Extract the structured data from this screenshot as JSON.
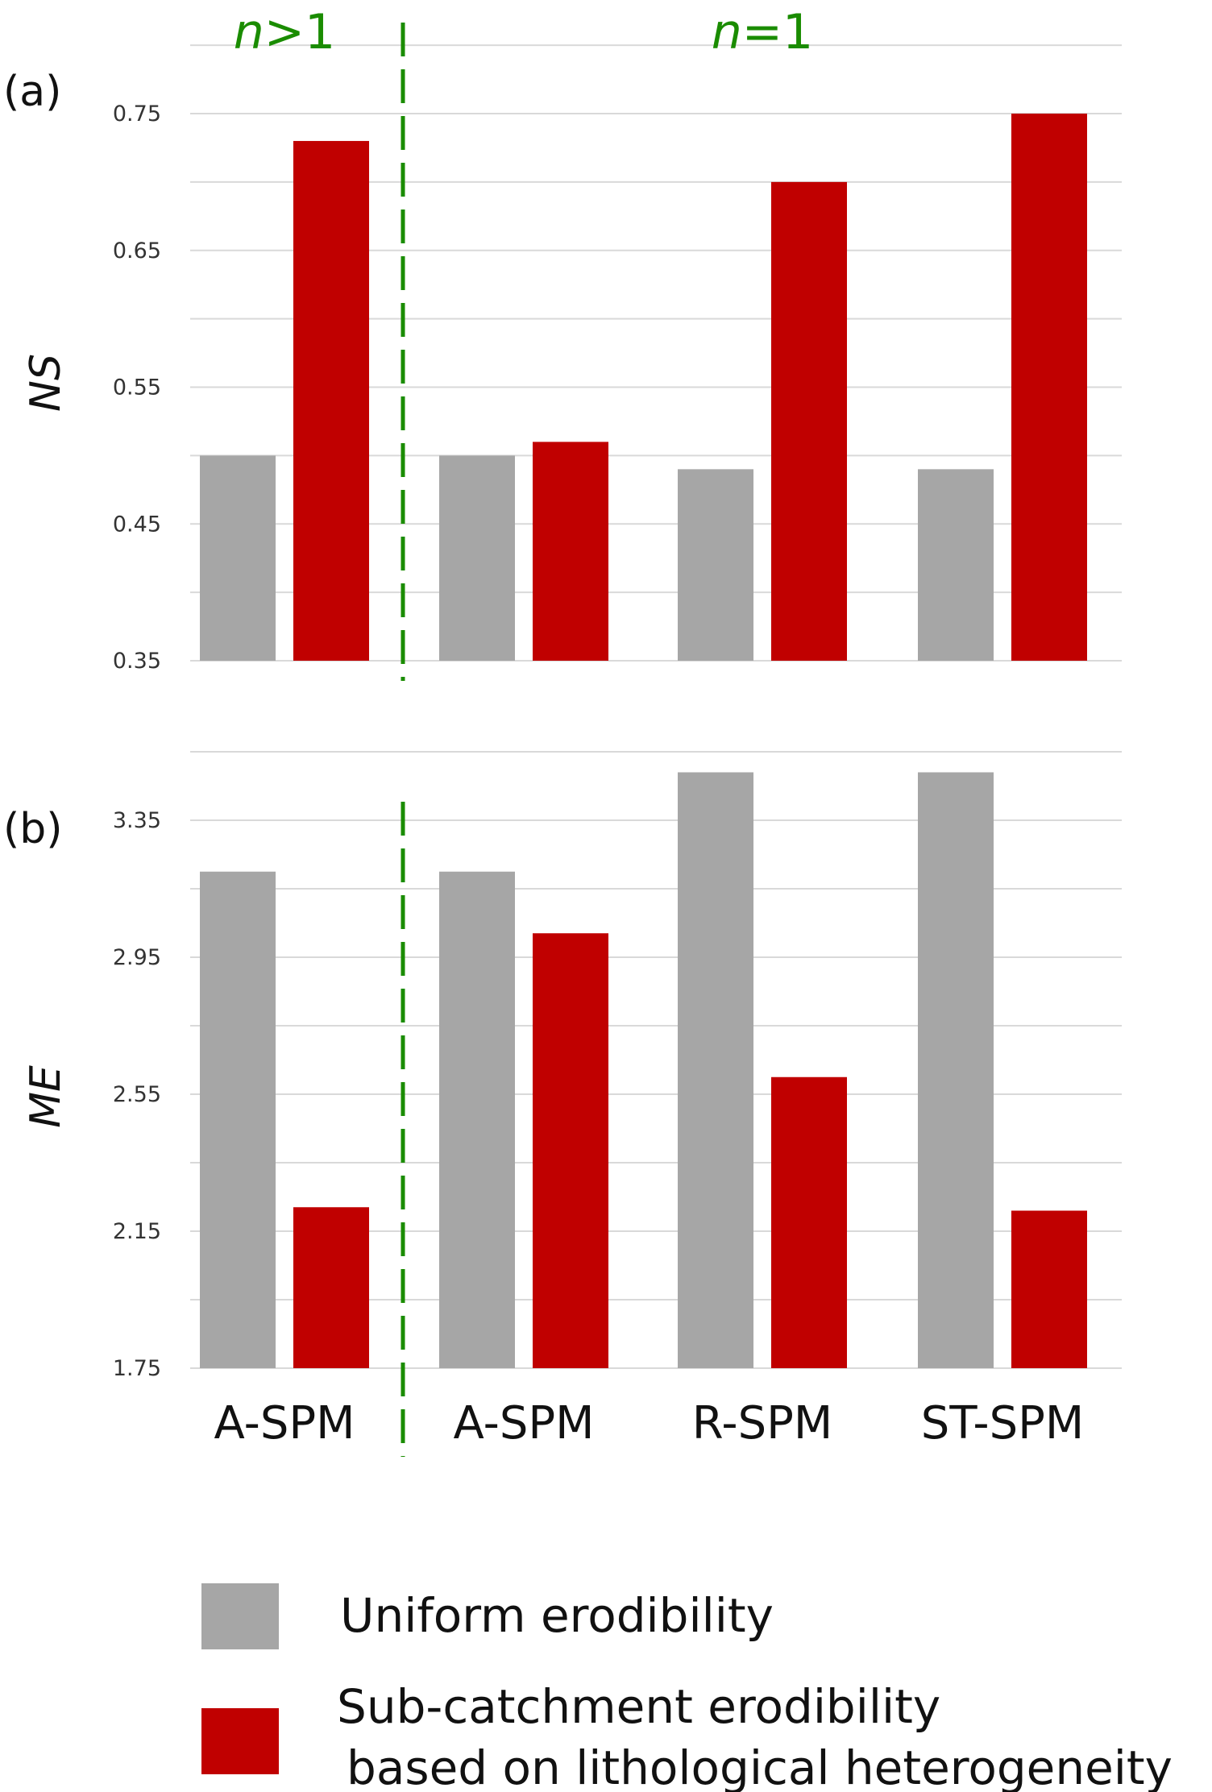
{
  "chart_data": [
    {
      "type": "bar",
      "panel_label": "(a)",
      "ylabel": "NS",
      "ylim": [
        0.35,
        0.75
      ],
      "yticks": [
        "0.35",
        "0.45",
        "0.55",
        "0.65",
        "0.75"
      ],
      "categories": [
        "A-SPM",
        "A-SPM",
        "R-SPM",
        "ST-SPM"
      ],
      "series": [
        {
          "name": "Uniform erodibility",
          "values": [
            0.5,
            0.5,
            0.49,
            0.49
          ]
        },
        {
          "name": "Sub-catchment erodibility based on lithological heterogeneity",
          "values": [
            0.73,
            0.51,
            0.7,
            0.75
          ]
        }
      ],
      "grid": true
    },
    {
      "type": "bar",
      "panel_label": "(b)",
      "ylabel": "ME",
      "ylim": [
        1.75,
        3.35
      ],
      "yticks": [
        "1.75",
        "2.15",
        "2.55",
        "2.95",
        "3.35"
      ],
      "categories": [
        "A-SPM",
        "A-SPM",
        "R-SPM",
        "ST-SPM"
      ],
      "series": [
        {
          "name": "Uniform erodibility",
          "values": [
            3.2,
            3.2,
            3.49,
            3.49
          ]
        },
        {
          "name": "Sub-catchment erodibility based on lithological heterogeneity",
          "values": [
            2.22,
            3.02,
            2.6,
            2.21
          ]
        }
      ],
      "grid": true
    }
  ],
  "groups": {
    "left": {
      "n": "n",
      "rest": ">1"
    },
    "right": {
      "n": "n",
      "rest": "=1"
    }
  },
  "legend": {
    "uniform": "Uniform erodibility",
    "sub_line1": "Sub-catchment erodibility",
    "sub_line2": "based on lithological heterogeneity"
  },
  "colors": {
    "uniform": "#a6a6a6",
    "sub_catchment": "#c00000",
    "divider": "#1a8c00",
    "grid": "#d9d9d9"
  }
}
